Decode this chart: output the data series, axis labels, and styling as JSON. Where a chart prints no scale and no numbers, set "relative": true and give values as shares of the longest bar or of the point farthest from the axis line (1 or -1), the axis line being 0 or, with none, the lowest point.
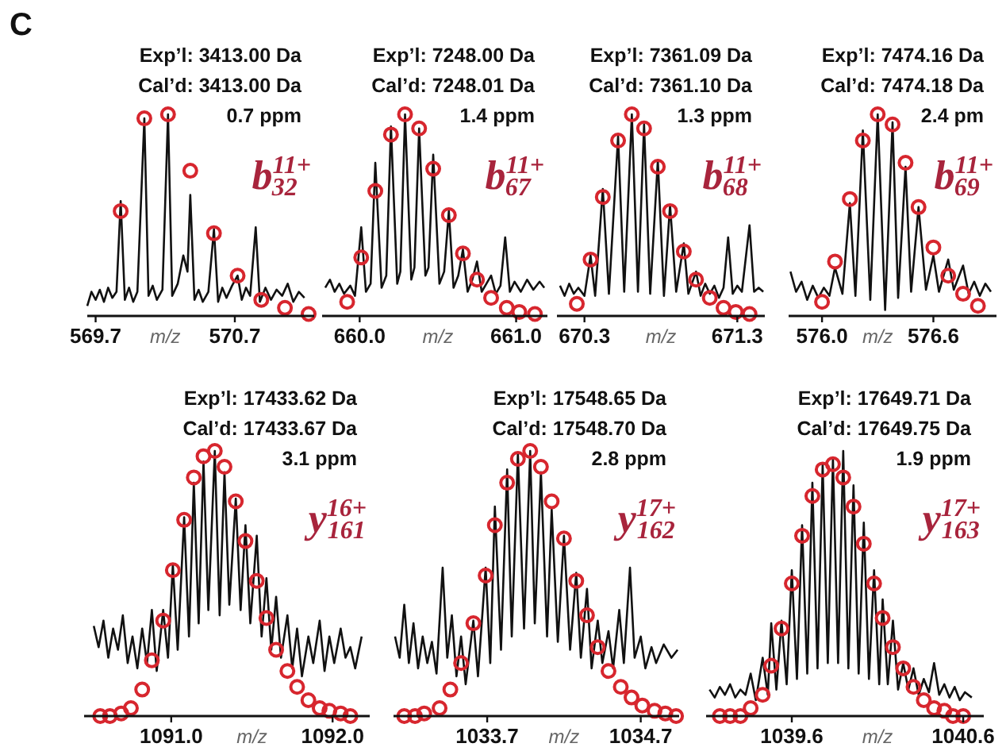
{
  "chart_data": [
    {
      "type": "line",
      "relative": true,
      "xlim": [
        569.64,
        571.27
      ],
      "xticks": [
        569.7,
        570.7
      ],
      "xlabel": "m/z",
      "annotations": [
        "C",
        "Exp’l: 3413.00 Da",
        "Cal’d: 3413.00 Da",
        "0.7 ppm",
        "b$^{11+}$$_{32}$"
      ],
      "series": [
        {
          "type": "line",
          "color": "#111111",
          "x": [
            569.64,
            569.67,
            569.7,
            569.73,
            569.76,
            569.79,
            569.82,
            569.85,
            569.88,
            569.91,
            569.94,
            569.97,
            570.0,
            570.05,
            570.08,
            570.11,
            570.14,
            570.18,
            570.22,
            570.25,
            570.29,
            570.33,
            570.36,
            570.38,
            570.41,
            570.44,
            570.47,
            570.51,
            570.55,
            570.58,
            570.61,
            570.64,
            570.68,
            570.72,
            570.75,
            570.78,
            570.81,
            570.85,
            570.88,
            570.92,
            570.96,
            571.0,
            571.04,
            571.08,
            571.12,
            571.16,
            571.2
          ],
          "values": [
            0.05,
            0.12,
            0.08,
            0.13,
            0.07,
            0.14,
            0.09,
            0.12,
            0.57,
            0.08,
            0.14,
            0.07,
            0.12,
            0.98,
            0.1,
            0.15,
            0.08,
            0.13,
            1.0,
            0.1,
            0.16,
            0.3,
            0.22,
            0.6,
            0.08,
            0.13,
            0.07,
            0.12,
            0.43,
            0.07,
            0.14,
            0.09,
            0.15,
            0.2,
            0.08,
            0.14,
            0.1,
            0.44,
            0.07,
            0.14,
            0.08,
            0.13,
            0.1,
            0.16,
            0.07,
            0.12,
            0.09
          ]
        },
        {
          "type": "scatter",
          "color": "#d7262e",
          "marker": "circle",
          "x": [
            569.88,
            570.05,
            570.22,
            570.38,
            570.55,
            570.72,
            570.89,
            571.06,
            571.23
          ],
          "values": [
            0.52,
            0.98,
            1.0,
            0.72,
            0.41,
            0.2,
            0.08,
            0.04,
            0.01
          ]
        }
      ]
    },
    {
      "type": "line",
      "relative": true,
      "xlim": [
        659.76,
        661.2
      ],
      "xticks": [
        {
          "value": 660,
          "label": "660.0"
        },
        {
          "value": 661,
          "label": "661.0"
        }
      ],
      "xlabel": "m/z",
      "annotations": [
        "Exp’l: 7248.00 Da",
        "Cal’d: 7248.01 Da",
        "1.4 ppm",
        "b$^{11+}$$_{67}$"
      ],
      "series": [
        {
          "type": "line",
          "color": "#111111",
          "x": [
            659.78,
            659.81,
            659.84,
            659.87,
            659.9,
            659.94,
            659.97,
            660.01,
            660.04,
            660.07,
            660.1,
            660.14,
            660.17,
            660.2,
            660.24,
            660.26,
            660.29,
            660.33,
            660.35,
            660.38,
            660.42,
            660.44,
            660.47,
            660.51,
            660.54,
            660.57,
            660.6,
            660.63,
            660.66,
            660.69,
            660.72,
            660.75,
            660.78,
            660.81,
            660.84,
            660.87,
            660.9,
            660.93,
            660.96,
            660.99,
            661.03,
            661.07,
            661.11,
            661.15,
            661.18
          ],
          "values": [
            0.14,
            0.18,
            0.12,
            0.16,
            0.11,
            0.15,
            0.1,
            0.44,
            0.12,
            0.16,
            0.76,
            0.14,
            0.2,
            0.94,
            0.16,
            0.22,
            1.0,
            0.18,
            0.24,
            0.93,
            0.2,
            0.24,
            0.8,
            0.16,
            0.22,
            0.52,
            0.14,
            0.2,
            0.33,
            0.12,
            0.18,
            0.27,
            0.12,
            0.16,
            0.2,
            0.11,
            0.15,
            0.39,
            0.12,
            0.17,
            0.12,
            0.18,
            0.13,
            0.17,
            0.14
          ]
        },
        {
          "type": "scatter",
          "color": "#d7262e",
          "marker": "circle",
          "x": [
            659.92,
            660.01,
            660.1,
            660.2,
            660.29,
            660.38,
            660.47,
            660.57,
            660.66,
            660.75,
            660.84,
            660.94,
            661.02,
            661.12
          ],
          "values": [
            0.07,
            0.29,
            0.62,
            0.9,
            1.0,
            0.93,
            0.73,
            0.5,
            0.31,
            0.18,
            0.09,
            0.04,
            0.02,
            0.01
          ]
        }
      ]
    },
    {
      "type": "line",
      "relative": true,
      "xlim": [
        670.12,
        671.48
      ],
      "xticks": [
        670.3,
        671.3
      ],
      "xlabel": "m/z",
      "annotations": [
        "Exp’l: 7361.09 Da",
        "Cal’d: 7361.10 Da",
        "1.3 ppm",
        "b$^{11+}$$_{68}$"
      ],
      "series": [
        {
          "type": "line",
          "color": "#111111",
          "x": [
            670.14,
            670.17,
            670.2,
            670.23,
            670.26,
            670.3,
            670.34,
            670.37,
            670.42,
            670.46,
            670.52,
            670.56,
            670.61,
            670.65,
            670.69,
            670.73,
            670.78,
            670.82,
            670.86,
            670.9,
            670.95,
            670.98,
            671.03,
            671.06,
            671.09,
            671.12,
            671.15,
            671.18,
            671.21,
            671.24,
            671.27,
            671.3,
            671.33,
            671.38,
            671.41,
            671.44,
            671.47
          ],
          "values": [
            0.15,
            0.1,
            0.16,
            0.11,
            0.14,
            0.1,
            0.3,
            0.1,
            0.63,
            0.11,
            0.89,
            0.12,
            1.0,
            0.12,
            0.95,
            0.11,
            0.77,
            0.1,
            0.55,
            0.12,
            0.36,
            0.11,
            0.22,
            0.1,
            0.16,
            0.11,
            0.15,
            0.09,
            0.14,
            0.39,
            0.11,
            0.15,
            0.12,
            0.45,
            0.12,
            0.14,
            0.12
          ]
        },
        {
          "type": "scatter",
          "color": "#d7262e",
          "marker": "circle",
          "x": [
            670.25,
            670.34,
            670.42,
            670.52,
            670.61,
            670.69,
            670.78,
            670.86,
            670.95,
            671.03,
            671.12,
            671.21,
            671.29,
            671.38
          ],
          "values": [
            0.06,
            0.28,
            0.59,
            0.87,
            1.0,
            0.93,
            0.74,
            0.52,
            0.32,
            0.18,
            0.09,
            0.04,
            0.02,
            0.01
          ]
        }
      ]
    },
    {
      "type": "line",
      "relative": true,
      "xlim": [
        575.82,
        576.94
      ],
      "xticks": [
        {
          "value": 576,
          "label": "576.0"
        },
        576.6
      ],
      "xlabel": "m/z",
      "annotations": [
        "Exp’l: 7474.16 Da",
        "Cal’d: 7474.18 Da",
        "2.4 pm",
        "b$^{11+}$$_{69}$"
      ],
      "series": [
        {
          "type": "line",
          "color": "#111111",
          "x": [
            575.83,
            575.86,
            575.89,
            575.92,
            575.95,
            575.98,
            576.01,
            576.04,
            576.07,
            576.11,
            576.15,
            576.18,
            576.22,
            576.26,
            576.3,
            576.34,
            576.38,
            576.41,
            576.45,
            576.48,
            576.52,
            576.56,
            576.6,
            576.63,
            576.68,
            576.71,
            576.76,
            576.79,
            576.82,
            576.85,
            576.88,
            576.91
          ],
          "values": [
            0.22,
            0.12,
            0.17,
            0.08,
            0.15,
            0.09,
            0.14,
            0.1,
            0.24,
            0.11,
            0.56,
            0.1,
            0.92,
            0.08,
            1.0,
            0.03,
            0.96,
            0.09,
            0.74,
            0.12,
            0.54,
            0.13,
            0.3,
            0.12,
            0.28,
            0.13,
            0.25,
            0.11,
            0.17,
            0.1,
            0.16,
            0.12
          ]
        },
        {
          "type": "scatter",
          "color": "#d7262e",
          "marker": "circle",
          "x": [
            576.0,
            576.07,
            576.15,
            576.22,
            576.3,
            576.38,
            576.45,
            576.52,
            576.6,
            576.68,
            576.76,
            576.84
          ],
          "values": [
            0.07,
            0.27,
            0.58,
            0.87,
            1.0,
            0.95,
            0.76,
            0.54,
            0.34,
            0.2,
            0.11,
            0.05
          ]
        }
      ]
    },
    {
      "type": "line",
      "relative": true,
      "xlim": [
        1090.46,
        1092.23
      ],
      "xticks": [
        {
          "value": 1091,
          "label": "1091.0"
        },
        {
          "value": 1092,
          "label": "1092.0"
        }
      ],
      "xlabel": "m/z",
      "annotations": [
        "Exp’l: 17433.62 Da",
        "Cal’d: 17433.67 Da",
        "3.1 ppm",
        "y$^{16+}$$_{161}$"
      ],
      "series": [
        {
          "type": "line",
          "color": "#111111",
          "x": [
            1090.52,
            1090.55,
            1090.58,
            1090.61,
            1090.64,
            1090.67,
            1090.7,
            1090.73,
            1090.76,
            1090.79,
            1090.82,
            1090.85,
            1090.88,
            1090.91,
            1090.95,
            1090.98,
            1091.01,
            1091.04,
            1091.08,
            1091.11,
            1091.14,
            1091.17,
            1091.2,
            1091.23,
            1091.27,
            1091.3,
            1091.33,
            1091.36,
            1091.4,
            1091.43,
            1091.46,
            1091.49,
            1091.53,
            1091.56,
            1091.59,
            1091.62,
            1091.65,
            1091.68,
            1091.72,
            1091.75,
            1091.78,
            1091.81,
            1091.85,
            1091.88,
            1091.92,
            1091.95,
            1091.98,
            1092.01,
            1092.05,
            1092.08,
            1092.11,
            1092.14,
            1092.18
          ],
          "values": [
            0.34,
            0.26,
            0.36,
            0.22,
            0.33,
            0.25,
            0.38,
            0.2,
            0.3,
            0.18,
            0.33,
            0.2,
            0.4,
            0.17,
            0.4,
            0.22,
            0.57,
            0.25,
            0.75,
            0.3,
            0.88,
            0.35,
            0.96,
            0.4,
            1.0,
            0.38,
            0.92,
            0.42,
            0.82,
            0.4,
            0.72,
            0.35,
            0.68,
            0.3,
            0.52,
            0.25,
            0.45,
            0.22,
            0.38,
            0.18,
            0.33,
            0.15,
            0.3,
            0.2,
            0.36,
            0.17,
            0.3,
            0.2,
            0.33,
            0.22,
            0.26,
            0.18,
            0.3
          ]
        },
        {
          "type": "scatter",
          "color": "#d7262e",
          "marker": "circle",
          "x": [
            1090.56,
            1090.62,
            1090.69,
            1090.75,
            1090.82,
            1090.88,
            1090.95,
            1091.01,
            1091.08,
            1091.14,
            1091.2,
            1091.27,
            1091.33,
            1091.4,
            1091.46,
            1091.53,
            1091.59,
            1091.65,
            1091.72,
            1091.78,
            1091.85,
            1091.92,
            1091.98,
            1092.05,
            1092.11
          ],
          "values": [
            0,
            0,
            0.01,
            0.03,
            0.1,
            0.21,
            0.36,
            0.55,
            0.74,
            0.9,
            0.98,
            1.0,
            0.94,
            0.81,
            0.66,
            0.51,
            0.37,
            0.25,
            0.17,
            0.11,
            0.06,
            0.03,
            0.02,
            0.01,
            0
          ]
        }
      ]
    },
    {
      "type": "line",
      "relative": true,
      "xlim": [
        1033.09,
        1034.95
      ],
      "xticks": [
        1033.7,
        1034.7
      ],
      "xlabel": "m/z",
      "annotations": [
        "Exp’l: 17548.65 Da",
        "Cal’d: 17548.70 Da",
        "2.8 ppm",
        "y$^{17+}$$_{162}$"
      ],
      "series": [
        {
          "type": "line",
          "color": "#111111",
          "x": [
            1033.1,
            1033.13,
            1033.16,
            1033.19,
            1033.22,
            1033.25,
            1033.28,
            1033.31,
            1033.34,
            1033.37,
            1033.41,
            1033.44,
            1033.47,
            1033.5,
            1033.53,
            1033.56,
            1033.61,
            1033.64,
            1033.69,
            1033.72,
            1033.75,
            1033.79,
            1033.83,
            1033.86,
            1033.9,
            1033.94,
            1033.98,
            1034.01,
            1034.05,
            1034.09,
            1034.12,
            1034.16,
            1034.2,
            1034.24,
            1034.28,
            1034.31,
            1034.35,
            1034.38,
            1034.42,
            1034.45,
            1034.49,
            1034.52,
            1034.56,
            1034.59,
            1034.63,
            1034.66,
            1034.7,
            1034.73,
            1034.77,
            1034.8,
            1034.85,
            1034.9,
            1034.94
          ],
          "values": [
            0.3,
            0.22,
            0.42,
            0.2,
            0.35,
            0.18,
            0.3,
            0.2,
            0.28,
            0.16,
            0.56,
            0.22,
            0.38,
            0.15,
            0.3,
            0.12,
            0.36,
            0.15,
            0.56,
            0.2,
            0.79,
            0.25,
            0.93,
            0.3,
            0.99,
            0.33,
            1.0,
            0.35,
            0.92,
            0.3,
            0.78,
            0.28,
            0.68,
            0.25,
            0.54,
            0.22,
            0.48,
            0.18,
            0.36,
            0.2,
            0.32,
            0.18,
            0.4,
            0.2,
            0.56,
            0.22,
            0.3,
            0.18,
            0.26,
            0.2,
            0.27,
            0.22,
            0.25
          ]
        },
        {
          "type": "scatter",
          "color": "#d7262e",
          "marker": "circle",
          "x": [
            1033.16,
            1033.23,
            1033.29,
            1033.39,
            1033.46,
            1033.53,
            1033.61,
            1033.69,
            1033.75,
            1033.83,
            1033.9,
            1033.98,
            1034.05,
            1034.12,
            1034.2,
            1034.28,
            1034.35,
            1034.42,
            1034.49,
            1034.57,
            1034.64,
            1034.71,
            1034.79,
            1034.86,
            1034.93
          ],
          "values": [
            0,
            0,
            0.01,
            0.03,
            0.1,
            0.2,
            0.35,
            0.53,
            0.72,
            0.88,
            0.97,
            1.0,
            0.94,
            0.81,
            0.67,
            0.51,
            0.38,
            0.26,
            0.17,
            0.11,
            0.07,
            0.04,
            0.02,
            0.01,
            0
          ]
        }
      ]
    },
    {
      "type": "line",
      "relative": true,
      "xlim": [
        1039.1,
        1040.72
      ],
      "xticks": [
        1039.6,
        1040.6
      ],
      "xlabel": "m/z",
      "annotations": [
        "Exp’l: 17649.71 Da",
        "Cal’d: 17649.75 Da",
        "1.9 ppm",
        "y$^{17+}$$_{163}$"
      ],
      "series": [
        {
          "type": "line",
          "color": "#111111",
          "x": [
            1039.12,
            1039.15,
            1039.18,
            1039.21,
            1039.24,
            1039.27,
            1039.3,
            1039.33,
            1039.36,
            1039.39,
            1039.43,
            1039.46,
            1039.48,
            1039.51,
            1039.54,
            1039.57,
            1039.6,
            1039.63,
            1039.66,
            1039.69,
            1039.72,
            1039.75,
            1039.78,
            1039.81,
            1039.84,
            1039.87,
            1039.9,
            1039.93,
            1039.96,
            1039.99,
            1040.02,
            1040.05,
            1040.08,
            1040.11,
            1040.13,
            1040.16,
            1040.19,
            1040.22,
            1040.25,
            1040.28,
            1040.31,
            1040.34,
            1040.37,
            1040.4,
            1040.43,
            1040.46,
            1040.49,
            1040.52,
            1040.55,
            1040.58,
            1040.61,
            1040.65
          ],
          "values": [
            0.1,
            0.07,
            0.11,
            0.08,
            0.12,
            0.07,
            0.1,
            0.08,
            0.16,
            0.06,
            0.22,
            0.08,
            0.35,
            0.1,
            0.36,
            0.12,
            0.55,
            0.14,
            0.72,
            0.16,
            0.88,
            0.18,
            0.95,
            0.2,
            0.97,
            0.2,
            1.0,
            0.18,
            0.87,
            0.16,
            0.73,
            0.14,
            0.55,
            0.12,
            0.44,
            0.12,
            0.36,
            0.1,
            0.2,
            0.1,
            0.18,
            0.08,
            0.14,
            0.09,
            0.2,
            0.08,
            0.12,
            0.07,
            0.11,
            0.06,
            0.09,
            0.07
          ]
        },
        {
          "type": "scatter",
          "color": "#d7262e",
          "marker": "circle",
          "x": [
            1039.18,
            1039.24,
            1039.3,
            1039.36,
            1039.43,
            1039.48,
            1039.54,
            1039.6,
            1039.66,
            1039.72,
            1039.78,
            1039.84,
            1039.9,
            1039.96,
            1040.02,
            1040.08,
            1040.13,
            1040.19,
            1040.25,
            1040.31,
            1040.37,
            1040.43,
            1040.49,
            1040.54,
            1040.6
          ],
          "values": [
            0,
            0,
            0,
            0.03,
            0.08,
            0.19,
            0.33,
            0.5,
            0.68,
            0.83,
            0.93,
            0.95,
            0.9,
            0.79,
            0.65,
            0.5,
            0.37,
            0.26,
            0.18,
            0.11,
            0.06,
            0.03,
            0.02,
            0,
            0
          ]
        }
      ]
    }
  ]
}
